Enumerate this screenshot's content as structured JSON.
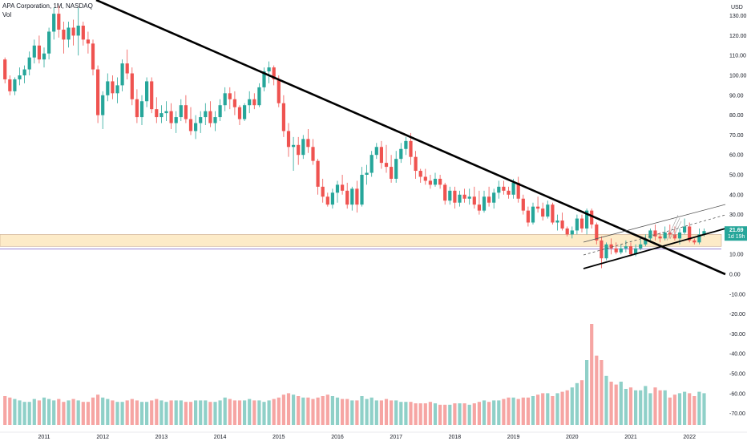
{
  "header": {
    "title": "APA Corporation, 1M, NASDAQ",
    "vol_label": "Vol"
  },
  "price_axis": {
    "currency": "USD",
    "last_price_label": "21.69",
    "countdown_label": "1d 19h"
  },
  "colors": {
    "up": "#26a69a",
    "down": "#ef5350",
    "vol_up": "#8fd0c8",
    "vol_down": "#f6a5a3",
    "zone_fill": "#fdebc8",
    "zone_border": "#c8a98e",
    "hline": "#7b5fc8",
    "trend": "#000000",
    "last_price_bg": "#26a69a"
  },
  "chart_data": {
    "type": "candlestick",
    "title": "APA Corporation, 1M, NASDAQ",
    "interval": "1M",
    "ylabel": "USD",
    "ylim": [
      -75,
      135
    ],
    "y_ticks": [
      "130.00",
      "120.00",
      "110.00",
      "100.00",
      "90.00",
      "80.00",
      "70.00",
      "60.00",
      "50.00",
      "40.00",
      "30.00",
      "20.00",
      "10.00",
      "0.00",
      "-10.00",
      "-20.00",
      "-30.00",
      "-40.00",
      "-50.00",
      "-60.00",
      "-70.00"
    ],
    "x_tick_labels": [
      "2011",
      "2012",
      "2013",
      "2014",
      "2015",
      "2016",
      "2017",
      "2018",
      "2019",
      "2020",
      "2021",
      "2022"
    ],
    "x_tick_years": [
      2011,
      2012,
      2013,
      2014,
      2015,
      2016,
      2017,
      2018,
      2019,
      2020,
      2021,
      2022
    ],
    "last_price": 21.69,
    "start": "2010-05",
    "series": [
      {
        "values": [
          [
            108,
            109,
            96,
            98
          ],
          [
            98,
            100,
            90,
            92
          ],
          [
            92,
            99,
            90,
            98
          ],
          [
            98,
            104,
            95,
            100
          ],
          [
            100,
            105,
            96,
            103
          ],
          [
            103,
            112,
            100,
            109
          ],
          [
            109,
            118,
            106,
            115
          ],
          [
            115,
            120,
            106,
            108
          ],
          [
            108,
            114,
            104,
            111
          ],
          [
            111,
            124,
            108,
            122
          ],
          [
            122,
            134,
            118,
            131
          ],
          [
            131,
            135,
            119,
            123
          ],
          [
            123,
            127,
            111,
            118
          ],
          [
            118,
            127,
            114,
            124
          ],
          [
            124,
            128,
            115,
            120
          ],
          [
            120,
            134,
            110,
            125
          ],
          [
            125,
            127,
            115,
            118
          ],
          [
            118,
            122,
            111,
            116
          ],
          [
            116,
            118,
            100,
            103
          ],
          [
            103,
            105,
            76,
            80
          ],
          [
            80,
            92,
            73,
            90
          ],
          [
            90,
            101,
            87,
            97
          ],
          [
            97,
            100,
            88,
            91
          ],
          [
            91,
            99,
            86,
            95
          ],
          [
            95,
            108,
            92,
            106
          ],
          [
            106,
            113,
            98,
            101
          ],
          [
            101,
            104,
            85,
            88
          ],
          [
            88,
            93,
            76,
            79
          ],
          [
            79,
            90,
            75,
            87
          ],
          [
            87,
            99,
            84,
            97
          ],
          [
            97,
            99,
            81,
            83
          ],
          [
            83,
            89,
            76,
            79
          ],
          [
            79,
            85,
            76,
            81
          ],
          [
            81,
            87,
            77,
            82
          ],
          [
            82,
            86,
            73,
            76
          ],
          [
            76,
            82,
            71,
            79
          ],
          [
            79,
            88,
            77,
            85
          ],
          [
            85,
            90,
            76,
            78
          ],
          [
            78,
            84,
            70,
            72
          ],
          [
            72,
            80,
            68,
            76
          ],
          [
            76,
            82,
            71,
            79
          ],
          [
            79,
            86,
            75,
            82
          ],
          [
            82,
            87,
            74,
            76
          ],
          [
            76,
            82,
            72,
            79
          ],
          [
            79,
            88,
            77,
            85
          ],
          [
            85,
            94,
            82,
            91
          ],
          [
            91,
            94,
            83,
            88
          ],
          [
            88,
            92,
            80,
            84
          ],
          [
            84,
            85,
            75,
            78
          ],
          [
            78,
            86,
            77,
            85
          ],
          [
            85,
            92,
            81,
            88
          ],
          [
            88,
            91,
            83,
            85
          ],
          [
            85,
            96,
            84,
            94
          ],
          [
            94,
            104,
            92,
            102
          ],
          [
            102,
            107,
            96,
            104
          ],
          [
            104,
            105,
            95,
            98
          ],
          [
            98,
            100,
            84,
            86
          ],
          [
            86,
            90,
            69,
            72
          ],
          [
            72,
            76,
            59,
            64
          ],
          [
            64,
            69,
            52,
            65
          ],
          [
            65,
            69,
            55,
            60
          ],
          [
            60,
            70,
            58,
            68
          ],
          [
            68,
            73,
            61,
            64
          ],
          [
            64,
            68,
            55,
            57
          ],
          [
            57,
            58,
            40,
            44
          ],
          [
            44,
            48,
            36,
            39
          ],
          [
            39,
            41,
            34,
            35
          ],
          [
            35,
            43,
            33,
            41
          ],
          [
            41,
            47,
            36,
            45
          ],
          [
            45,
            50,
            40,
            42
          ],
          [
            42,
            46,
            33,
            35
          ],
          [
            35,
            44,
            32,
            43
          ],
          [
            43,
            47,
            31,
            35
          ],
          [
            35,
            54,
            34,
            50
          ],
          [
            50,
            55,
            45,
            51
          ],
          [
            51,
            62,
            49,
            60
          ],
          [
            60,
            66,
            58,
            64
          ],
          [
            64,
            67,
            53,
            56
          ],
          [
            56,
            65,
            51,
            54
          ],
          [
            54,
            60,
            46,
            48
          ],
          [
            48,
            62,
            46,
            58
          ],
          [
            58,
            66,
            56,
            63
          ],
          [
            63,
            69,
            60,
            67
          ],
          [
            67,
            71,
            55,
            59
          ],
          [
            59,
            62,
            48,
            52
          ],
          [
            52,
            53,
            46,
            49
          ],
          [
            49,
            53,
            45,
            47
          ],
          [
            47,
            50,
            43,
            45
          ],
          [
            45,
            51,
            44,
            48
          ],
          [
            48,
            50,
            43,
            45
          ],
          [
            45,
            46,
            35,
            37
          ],
          [
            37,
            44,
            35,
            42
          ],
          [
            42,
            44,
            33,
            36
          ],
          [
            36,
            42,
            34,
            40
          ],
          [
            40,
            43,
            36,
            38
          ],
          [
            38,
            43,
            35,
            39
          ],
          [
            39,
            44,
            33,
            35
          ],
          [
            35,
            42,
            30,
            32
          ],
          [
            32,
            42,
            31,
            39
          ],
          [
            39,
            44,
            34,
            36
          ],
          [
            36,
            43,
            33,
            41
          ],
          [
            41,
            47,
            38,
            44
          ],
          [
            44,
            47,
            40,
            42
          ],
          [
            42,
            44,
            38,
            40
          ],
          [
            40,
            48,
            38,
            46
          ],
          [
            46,
            49,
            36,
            38
          ],
          [
            38,
            40,
            30,
            32
          ],
          [
            32,
            34,
            24,
            26
          ],
          [
            26,
            36,
            25,
            34
          ],
          [
            34,
            39,
            31,
            33
          ],
          [
            33,
            36,
            27,
            29
          ],
          [
            29,
            37,
            28,
            35
          ],
          [
            35,
            36,
            25,
            26
          ],
          [
            26,
            30,
            22,
            27
          ],
          [
            27,
            31,
            22,
            23
          ],
          [
            23,
            24,
            19,
            20
          ],
          [
            20,
            24,
            18,
            22
          ],
          [
            22,
            30,
            20,
            28
          ],
          [
            28,
            30,
            21,
            23
          ],
          [
            23,
            33,
            20,
            32
          ],
          [
            32,
            33,
            23,
            25
          ],
          [
            25,
            26,
            15,
            17
          ],
          [
            17,
            19,
            3,
            8
          ],
          [
            8,
            16,
            7,
            15
          ],
          [
            15,
            18,
            10,
            13
          ],
          [
            13,
            16,
            10,
            11
          ],
          [
            11,
            15,
            10,
            13
          ],
          [
            13,
            17,
            11,
            14
          ],
          [
            14,
            16,
            9,
            10
          ],
          [
            10,
            15,
            9,
            13
          ],
          [
            13,
            18,
            12,
            15
          ],
          [
            15,
            20,
            14,
            18
          ],
          [
            18,
            23,
            17,
            22
          ],
          [
            22,
            25,
            17,
            19
          ],
          [
            19,
            21,
            16,
            18
          ],
          [
            18,
            24,
            17,
            21
          ],
          [
            21,
            25,
            18,
            20
          ],
          [
            20,
            24,
            17,
            18
          ],
          [
            18,
            23,
            15,
            21
          ],
          [
            21,
            28,
            20,
            24
          ],
          [
            24,
            26,
            16,
            17
          ],
          [
            17,
            18,
            15,
            16
          ],
          [
            16,
            23,
            15,
            20
          ],
          [
            20,
            23,
            19,
            21.69
          ]
        ]
      }
    ],
    "volume": [
      20,
      19,
      18,
      17,
      16,
      16,
      18,
      17,
      19,
      18,
      17,
      18,
      16,
      17,
      18,
      17,
      16,
      16,
      19,
      21,
      19,
      18,
      17,
      16,
      16,
      17,
      18,
      17,
      16,
      16,
      17,
      18,
      17,
      16,
      17,
      17,
      17,
      16,
      16,
      17,
      17,
      17,
      16,
      16,
      17,
      19,
      18,
      17,
      17,
      17,
      18,
      17,
      17,
      16,
      17,
      18,
      19,
      21,
      22,
      21,
      20,
      19,
      19,
      18,
      19,
      20,
      21,
      20,
      19,
      18,
      18,
      17,
      17,
      20,
      18,
      19,
      17,
      17,
      18,
      17,
      17,
      16,
      16,
      16,
      15,
      15,
      15,
      16,
      15,
      14,
      14,
      14,
      15,
      15,
      15,
      14,
      15,
      16,
      17,
      16,
      17,
      17,
      18,
      19,
      19,
      18,
      19,
      19,
      20,
      21,
      22,
      22,
      20,
      22,
      23,
      24,
      26,
      29,
      31,
      45,
      70,
      48,
      45,
      34,
      30,
      28,
      30,
      25,
      26,
      24,
      24,
      27,
      22,
      26,
      24,
      24,
      19,
      21,
      22,
      23,
      22,
      20,
      23,
      22
    ],
    "horizontal_lines": [
      {
        "price": 20.0,
        "role": "zone-top"
      },
      {
        "price": 14.0,
        "role": "zone-bottom"
      },
      {
        "price": 12.7,
        "role": "level"
      }
    ]
  }
}
